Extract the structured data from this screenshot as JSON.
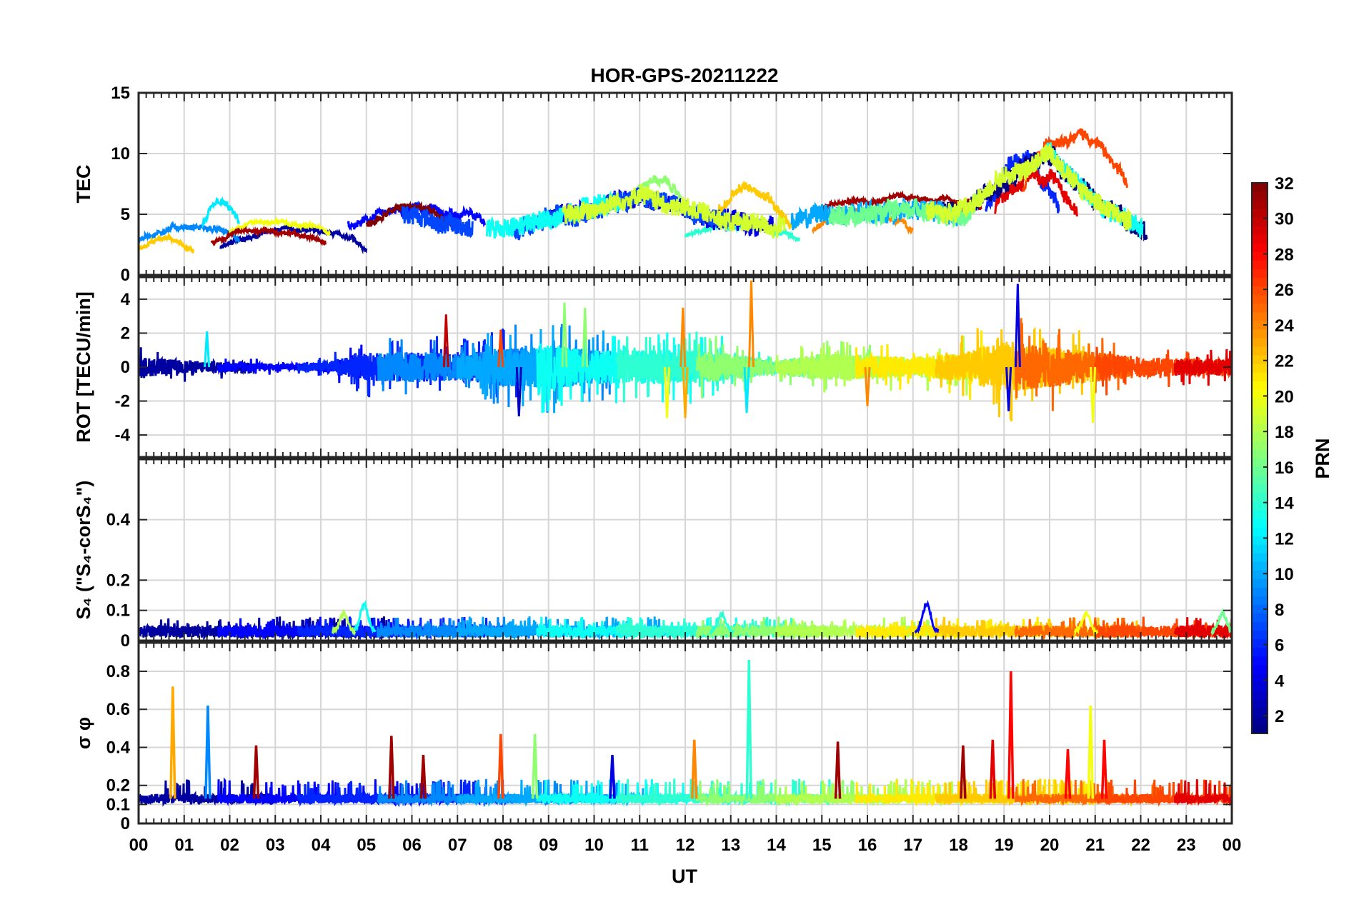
{
  "chart_data": {
    "type": "line",
    "title": "HOR-GPS-20211222",
    "xlabel": "UT",
    "x_tick_labels": [
      "00",
      "01",
      "02",
      "03",
      "04",
      "05",
      "06",
      "07",
      "08",
      "09",
      "10",
      "11",
      "12",
      "13",
      "14",
      "15",
      "16",
      "17",
      "18",
      "19",
      "20",
      "21",
      "22",
      "23",
      "00"
    ],
    "xlim": [
      0,
      24
    ],
    "grid": true,
    "panels": [
      {
        "id": "tec",
        "ylabel": "TEC",
        "ylim": [
          0,
          15
        ],
        "yticks": [
          0,
          5,
          10,
          15
        ],
        "ytick_labels": [
          "0",
          "5",
          "10",
          "15"
        ],
        "envelope_hours": [
          0,
          1,
          2,
          3,
          4,
          5,
          6,
          7,
          8,
          9,
          10,
          11,
          12,
          13,
          14,
          15,
          16,
          17,
          18,
          19,
          20,
          21,
          22,
          23,
          24
        ],
        "envelope_values": [
          4.5,
          2.5,
          4,
          3,
          3,
          4.5,
          5,
          4,
          3.5,
          4.5,
          5.5,
          6.5,
          5.5,
          4.5,
          4,
          5,
          5,
          5.5,
          5,
          8,
          10,
          6,
          4,
          4,
          3.5
        ],
        "series": [
          {
            "prn": 2,
            "start": 1.8,
            "end": 5.0,
            "level": 3.0,
            "amp": 1.6,
            "noise": 0.35
          },
          {
            "prn": 5,
            "start": 4.6,
            "end": 7.6,
            "level": 4.8,
            "amp": 1.4,
            "noise": 0.6
          },
          {
            "prn": 6,
            "start": 18.6,
            "end": 20.2,
            "level": 7.5,
            "amp": 4.0,
            "noise": 1.2
          },
          {
            "prn": 9,
            "start": 0.0,
            "end": 2.2,
            "level": 3.5,
            "amp": 1.2,
            "noise": 0.4
          },
          {
            "prn": 12,
            "start": 1.4,
            "end": 2.2,
            "level": 4.8,
            "amp": 1.4,
            "noise": 0.5
          },
          {
            "prn": 14,
            "start": 12.0,
            "end": 14.5,
            "level": 3.6,
            "amp": 0.8,
            "noise": 0.3
          },
          {
            "prn": 17,
            "start": 10.7,
            "end": 12.0,
            "level": 6.8,
            "amp": 2.2,
            "noise": 0.6
          },
          {
            "prn": 20,
            "start": 2.0,
            "end": 4.2,
            "level": 4.0,
            "amp": 1.0,
            "noise": 0.3
          },
          {
            "prn": 22,
            "start": 12.5,
            "end": 14.4,
            "level": 5.5,
            "amp": 3.0,
            "noise": 0.7
          },
          {
            "prn": 22,
            "start": 0.0,
            "end": 1.2,
            "level": 2.5,
            "amp": 0.8,
            "noise": 0.3
          },
          {
            "prn": 24,
            "start": 14.8,
            "end": 17.0,
            "level": 4.5,
            "amp": 1.5,
            "noise": 0.4
          },
          {
            "prn": 26,
            "start": 19.4,
            "end": 21.7,
            "level": 9.5,
            "amp": 5.0,
            "noise": 0.8
          },
          {
            "prn": 29,
            "start": 18.8,
            "end": 20.6,
            "level": 7.0,
            "amp": 3.0,
            "noise": 1.0
          },
          {
            "prn": 31,
            "start": 15.0,
            "end": 18.5,
            "level": 6.0,
            "amp": 1.0,
            "noise": 0.35
          },
          {
            "prn": 32,
            "start": 5.0,
            "end": 6.9,
            "level": 4.8,
            "amp": 1.5,
            "noise": 0.5
          },
          {
            "prn": 31,
            "start": 1.6,
            "end": 4.1,
            "level": 3.2,
            "amp": 1.0,
            "noise": 0.3
          }
        ]
      },
      {
        "id": "rot",
        "ylabel": "ROT [TECU/min]",
        "ylim": [
          -5.3,
          5.3
        ],
        "yticks": [
          -4,
          -2,
          0,
          2,
          4
        ],
        "ytick_labels": [
          "-4",
          "-2",
          "0",
          "2",
          "4"
        ],
        "activity_hours": [
          0,
          1,
          2,
          3,
          4,
          5,
          6,
          7,
          8,
          9,
          10,
          11,
          12,
          13,
          14,
          15,
          16,
          17,
          18,
          19,
          20,
          21,
          22,
          23,
          24
        ],
        "activity_amplitude": [
          0.6,
          0.4,
          0.3,
          0.2,
          0.25,
          0.8,
          0.9,
          0.8,
          1.1,
          1.3,
          1.0,
          1.0,
          1.0,
          0.8,
          0.4,
          0.8,
          0.7,
          0.6,
          0.8,
          1.5,
          1.2,
          0.9,
          0.6,
          0.5,
          0.5
        ],
        "spikes": [
          {
            "hour": 6.75,
            "value": 3.1,
            "prn": 30
          },
          {
            "hour": 7.95,
            "value": 2.2,
            "prn": 26
          },
          {
            "hour": 8.35,
            "value": -2.9,
            "prn": 3
          },
          {
            "hour": 9.35,
            "value": 3.8,
            "prn": 17
          },
          {
            "hour": 9.8,
            "value": 3.5,
            "prn": 17
          },
          {
            "hour": 11.6,
            "value": -3.0,
            "prn": 20
          },
          {
            "hour": 11.95,
            "value": 3.5,
            "prn": 24
          },
          {
            "hour": 12.0,
            "value": -3.0,
            "prn": 23
          },
          {
            "hour": 13.35,
            "value": -2.7,
            "prn": 12
          },
          {
            "hour": 13.45,
            "value": 5.1,
            "prn": 24
          },
          {
            "hour": 19.3,
            "value": 4.9,
            "prn": 4
          },
          {
            "hour": 19.1,
            "value": -2.6,
            "prn": 4
          },
          {
            "hour": 20.95,
            "value": -3.3,
            "prn": 20
          },
          {
            "hour": 1.5,
            "value": 2.1,
            "prn": 12
          },
          {
            "hour": 16.0,
            "value": -2.3,
            "prn": 24
          }
        ]
      },
      {
        "id": "s4",
        "ylabel": "S₄ (\"S₄-corS₄\")",
        "ylim": [
          0,
          0.6
        ],
        "yticks": [
          0,
          0.1,
          0.2,
          0.4
        ],
        "ytick_labels": [
          "0",
          "0.1",
          "0.2",
          "0.4"
        ],
        "baseline": 0.03,
        "bursts": [
          {
            "hour": 4.95,
            "value": 0.12,
            "prn": 13
          },
          {
            "hour": 17.3,
            "value": 0.12,
            "prn": 5
          },
          {
            "hour": 4.5,
            "value": 0.09,
            "prn": 18
          },
          {
            "hour": 12.8,
            "value": 0.09,
            "prn": 14
          },
          {
            "hour": 20.8,
            "value": 0.09,
            "prn": 20
          },
          {
            "hour": 23.8,
            "value": 0.09,
            "prn": 16
          }
        ]
      },
      {
        "id": "sigphi",
        "ylabel": "σ φ",
        "ylim": [
          0,
          0.95
        ],
        "yticks": [
          0,
          0.1,
          0.2,
          0.4,
          0.6,
          0.8
        ],
        "ytick_labels": [
          "0",
          "0.1",
          "0.2",
          "0.4",
          "0.6",
          "0.8"
        ],
        "baseline": 0.13,
        "spikes": [
          {
            "hour": 0.75,
            "value": 0.72,
            "prn": 23
          },
          {
            "hour": 1.52,
            "value": 0.62,
            "prn": 9
          },
          {
            "hour": 2.58,
            "value": 0.41,
            "prn": 31
          },
          {
            "hour": 5.55,
            "value": 0.46,
            "prn": 31
          },
          {
            "hour": 6.25,
            "value": 0.36,
            "prn": 31
          },
          {
            "hour": 7.95,
            "value": 0.47,
            "prn": 26
          },
          {
            "hour": 8.7,
            "value": 0.47,
            "prn": 17
          },
          {
            "hour": 10.4,
            "value": 0.36,
            "prn": 4
          },
          {
            "hour": 12.2,
            "value": 0.44,
            "prn": 24
          },
          {
            "hour": 13.4,
            "value": 0.86,
            "prn": 14
          },
          {
            "hour": 15.35,
            "value": 0.43,
            "prn": 31
          },
          {
            "hour": 18.1,
            "value": 0.41,
            "prn": 31
          },
          {
            "hour": 18.75,
            "value": 0.44,
            "prn": 29
          },
          {
            "hour": 19.15,
            "value": 0.8,
            "prn": 28
          },
          {
            "hour": 20.4,
            "value": 0.39,
            "prn": 28
          },
          {
            "hour": 20.9,
            "value": 0.62,
            "prn": 20
          },
          {
            "hour": 21.2,
            "value": 0.44,
            "prn": 28
          }
        ]
      }
    ],
    "colorbar": {
      "label": "PRN",
      "range": [
        1,
        32
      ],
      "ticks": [
        2,
        4,
        6,
        8,
        10,
        12,
        14,
        16,
        18,
        20,
        22,
        24,
        26,
        28,
        30,
        32
      ],
      "colormap": "jet"
    }
  }
}
